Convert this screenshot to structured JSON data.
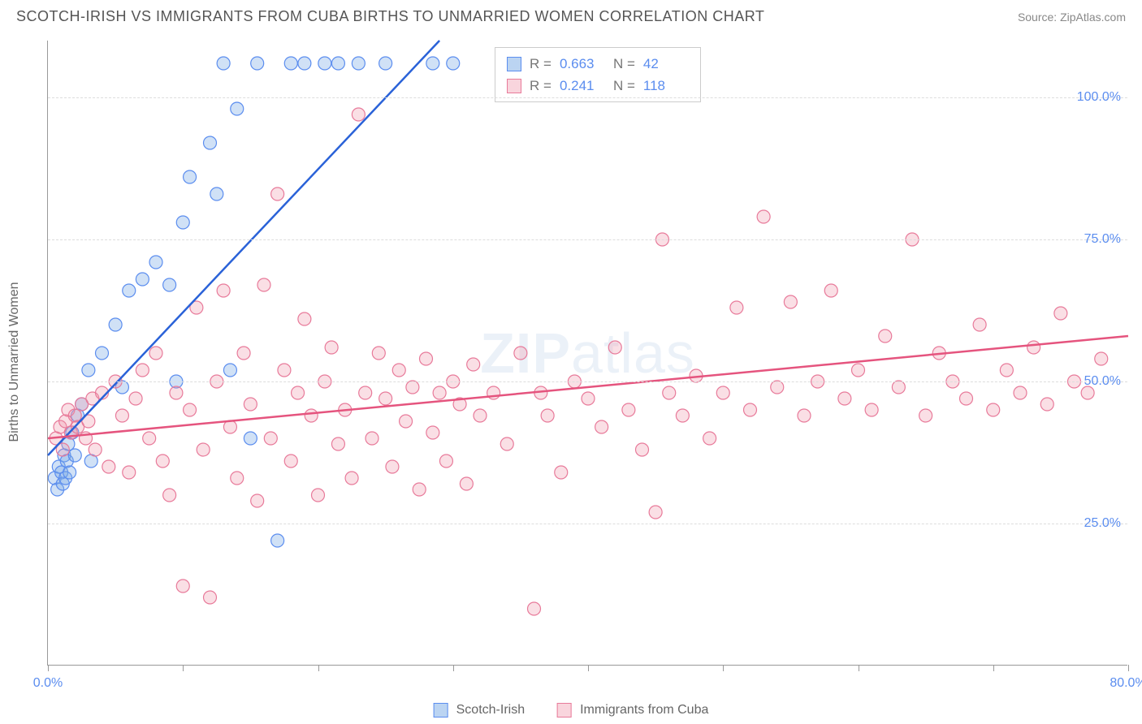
{
  "header": {
    "title": "SCOTCH-IRISH VS IMMIGRANTS FROM CUBA BIRTHS TO UNMARRIED WOMEN CORRELATION CHART",
    "source_prefix": "Source: ",
    "source_name": "ZipAtlas.com"
  },
  "chart": {
    "type": "scatter",
    "ylabel": "Births to Unmarried Women",
    "watermark": "ZIPatlas",
    "background_color": "#ffffff",
    "grid_color": "#dddddd",
    "axis_color": "#999999",
    "label_color": "#666666",
    "tick_label_color": "#5b8def",
    "xlim": [
      0,
      80
    ],
    "ylim": [
      0,
      110
    ],
    "xticks": [
      0,
      10,
      20,
      30,
      40,
      50,
      60,
      70,
      80
    ],
    "xtick_labels": {
      "0": "0.0%",
      "80": "80.0%"
    },
    "yticks": [
      25,
      50,
      75,
      100
    ],
    "ytick_labels": [
      "25.0%",
      "50.0%",
      "75.0%",
      "100.0%"
    ],
    "marker_radius": 8,
    "marker_stroke_width": 1.2,
    "trend_line_width": 2.5,
    "series": [
      {
        "name": "Scotch-Irish",
        "color_fill": "rgba(120,170,230,0.35)",
        "color_stroke": "#5b8def",
        "line_color": "#2a62d8",
        "R": "0.663",
        "N": "42",
        "trend": {
          "x1": 0,
          "y1": 37,
          "x2": 29,
          "y2": 110
        },
        "points": [
          [
            0.5,
            33
          ],
          [
            0.8,
            35
          ],
          [
            0.7,
            31
          ],
          [
            1.0,
            34
          ],
          [
            1.2,
            37
          ],
          [
            1.1,
            32
          ],
          [
            1.4,
            36
          ],
          [
            1.3,
            33
          ],
          [
            1.5,
            39
          ],
          [
            1.6,
            34
          ],
          [
            1.8,
            41
          ],
          [
            2.0,
            37
          ],
          [
            2.2,
            44
          ],
          [
            2.5,
            46
          ],
          [
            3.0,
            52
          ],
          [
            3.2,
            36
          ],
          [
            4.0,
            55
          ],
          [
            5.0,
            60
          ],
          [
            5.5,
            49
          ],
          [
            6.0,
            66
          ],
          [
            7.0,
            68
          ],
          [
            8.0,
            71
          ],
          [
            9.0,
            67
          ],
          [
            9.5,
            50
          ],
          [
            10.0,
            78
          ],
          [
            10.5,
            86
          ],
          [
            12.0,
            92
          ],
          [
            12.5,
            83
          ],
          [
            13.0,
            106
          ],
          [
            14.0,
            98
          ],
          [
            13.5,
            52
          ],
          [
            15.0,
            40
          ],
          [
            15.5,
            106
          ],
          [
            17.0,
            22
          ],
          [
            18.0,
            106
          ],
          [
            19.0,
            106
          ],
          [
            20.5,
            106
          ],
          [
            21.5,
            106
          ],
          [
            23.0,
            106
          ],
          [
            25.0,
            106
          ],
          [
            28.5,
            106
          ],
          [
            30.0,
            106
          ]
        ]
      },
      {
        "name": "Immigrants from Cuba",
        "color_fill": "rgba(240,150,170,0.30)",
        "color_stroke": "#e87a9a",
        "line_color": "#e5547e",
        "R": "0.241",
        "N": "118",
        "trend": {
          "x1": 0,
          "y1": 40,
          "x2": 80,
          "y2": 58
        },
        "points": [
          [
            0.6,
            40
          ],
          [
            0.9,
            42
          ],
          [
            1.1,
            38
          ],
          [
            1.3,
            43
          ],
          [
            1.5,
            45
          ],
          [
            1.7,
            41
          ],
          [
            2.0,
            44
          ],
          [
            2.2,
            42
          ],
          [
            2.5,
            46
          ],
          [
            2.8,
            40
          ],
          [
            3.0,
            43
          ],
          [
            3.3,
            47
          ],
          [
            3.5,
            38
          ],
          [
            4.0,
            48
          ],
          [
            4.5,
            35
          ],
          [
            5.0,
            50
          ],
          [
            5.5,
            44
          ],
          [
            6.0,
            34
          ],
          [
            6.5,
            47
          ],
          [
            7.0,
            52
          ],
          [
            7.5,
            40
          ],
          [
            8.0,
            55
          ],
          [
            8.5,
            36
          ],
          [
            9.0,
            30
          ],
          [
            9.5,
            48
          ],
          [
            10.0,
            14
          ],
          [
            10.5,
            45
          ],
          [
            11.0,
            63
          ],
          [
            11.5,
            38
          ],
          [
            12.0,
            12
          ],
          [
            12.5,
            50
          ],
          [
            13.0,
            66
          ],
          [
            13.5,
            42
          ],
          [
            14.0,
            33
          ],
          [
            14.5,
            55
          ],
          [
            15.0,
            46
          ],
          [
            15.5,
            29
          ],
          [
            16.0,
            67
          ],
          [
            16.5,
            40
          ],
          [
            17.0,
            83
          ],
          [
            17.5,
            52
          ],
          [
            18.0,
            36
          ],
          [
            18.5,
            48
          ],
          [
            19.0,
            61
          ],
          [
            19.5,
            44
          ],
          [
            20.0,
            30
          ],
          [
            20.5,
            50
          ],
          [
            21.0,
            56
          ],
          [
            21.5,
            39
          ],
          [
            22.0,
            45
          ],
          [
            22.5,
            33
          ],
          [
            23.0,
            97
          ],
          [
            23.5,
            48
          ],
          [
            24.0,
            40
          ],
          [
            24.5,
            55
          ],
          [
            25.0,
            47
          ],
          [
            25.5,
            35
          ],
          [
            26.0,
            52
          ],
          [
            26.5,
            43
          ],
          [
            27.0,
            49
          ],
          [
            27.5,
            31
          ],
          [
            28.0,
            54
          ],
          [
            28.5,
            41
          ],
          [
            29.0,
            48
          ],
          [
            29.5,
            36
          ],
          [
            30.0,
            50
          ],
          [
            30.5,
            46
          ],
          [
            31.0,
            32
          ],
          [
            31.5,
            53
          ],
          [
            32.0,
            44
          ],
          [
            33.0,
            48
          ],
          [
            34.0,
            39
          ],
          [
            35.0,
            55
          ],
          [
            36.0,
            10
          ],
          [
            36.5,
            48
          ],
          [
            37.0,
            44
          ],
          [
            38.0,
            34
          ],
          [
            39.0,
            50
          ],
          [
            40.0,
            47
          ],
          [
            41.0,
            42
          ],
          [
            42.0,
            56
          ],
          [
            43.0,
            45
          ],
          [
            44.0,
            38
          ],
          [
            45.0,
            27
          ],
          [
            45.5,
            75
          ],
          [
            46.0,
            48
          ],
          [
            47.0,
            44
          ],
          [
            48.0,
            51
          ],
          [
            49.0,
            40
          ],
          [
            50.0,
            48
          ],
          [
            51.0,
            63
          ],
          [
            52.0,
            45
          ],
          [
            53.0,
            79
          ],
          [
            54.0,
            49
          ],
          [
            55.0,
            64
          ],
          [
            56.0,
            44
          ],
          [
            57.0,
            50
          ],
          [
            58.0,
            66
          ],
          [
            59.0,
            47
          ],
          [
            60.0,
            52
          ],
          [
            61.0,
            45
          ],
          [
            62.0,
            58
          ],
          [
            63.0,
            49
          ],
          [
            64.0,
            75
          ],
          [
            65.0,
            44
          ],
          [
            66.0,
            55
          ],
          [
            67.0,
            50
          ],
          [
            68.0,
            47
          ],
          [
            69.0,
            60
          ],
          [
            70.0,
            45
          ],
          [
            71.0,
            52
          ],
          [
            72.0,
            48
          ],
          [
            73.0,
            56
          ],
          [
            74.0,
            46
          ],
          [
            75.0,
            62
          ],
          [
            76.0,
            50
          ],
          [
            77.0,
            48
          ],
          [
            78.0,
            54
          ]
        ]
      }
    ],
    "stats_box": {
      "R_label": "R =",
      "N_label": "N ="
    },
    "bottom_legend": {
      "items": [
        "Scotch-Irish",
        "Immigrants from Cuba"
      ]
    }
  }
}
